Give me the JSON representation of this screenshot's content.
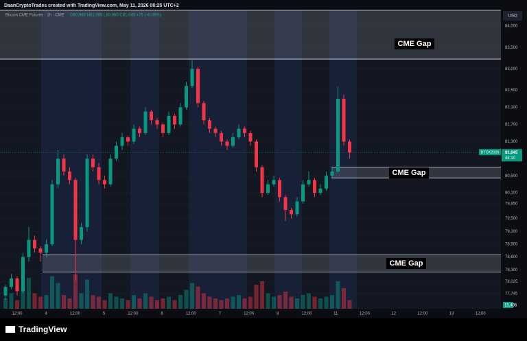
{
  "header": "DaanCryptoTrades created with TradingView.com, May 11, 2026 08:25 UTC+2",
  "chart_data": {
    "type": "candlestick",
    "title": "Bitcoin CME Futures · 1h · CME",
    "ohlc_legend": "O80,960 H81,085 L80,960 C81,045 +75 (+0.09%)",
    "currency": "USD",
    "up_color": "#089981",
    "down_color": "#f23645",
    "ylim": [
      77390,
      84370
    ],
    "yticks": [
      {
        "value": 84000,
        "label": "84,000"
      },
      {
        "value": 83500,
        "label": "83,500"
      },
      {
        "value": 83000,
        "label": "83,000"
      },
      {
        "value": 82500,
        "label": "82,500"
      },
      {
        "value": 82100,
        "label": "82,100"
      },
      {
        "value": 81700,
        "label": "81,700"
      },
      {
        "value": 81300,
        "label": "81,300"
      },
      {
        "value": 80500,
        "label": "80,500"
      },
      {
        "value": 80100,
        "label": "80,100"
      },
      {
        "value": 79850,
        "label": "79,850"
      },
      {
        "value": 79500,
        "label": "79,500"
      },
      {
        "value": 79200,
        "label": "79,200"
      },
      {
        "value": 78900,
        "label": "78,900"
      },
      {
        "value": 78600,
        "label": "78,600"
      },
      {
        "value": 78300,
        "label": "78,300"
      },
      {
        "value": 78025,
        "label": "78,025"
      },
      {
        "value": 77745,
        "label": "77,745"
      }
    ],
    "x_labels": [
      "12:00",
      "4",
      "12:00",
      "5",
      "12:00",
      "6",
      "12:00",
      "7",
      "12:00",
      "8",
      "12:00",
      "11",
      "12:00",
      "12",
      "12:00",
      "13",
      "12:00"
    ],
    "candles": [
      [
        77700,
        77950,
        77600,
        77900
      ],
      [
        77900,
        78200,
        77850,
        78100
      ],
      [
        78100,
        78150,
        77700,
        77800
      ],
      [
        77800,
        78700,
        77750,
        78600
      ],
      [
        78600,
        79300,
        78500,
        79000
      ],
      [
        79000,
        79100,
        78700,
        78800
      ],
      [
        78800,
        78850,
        78500,
        78700
      ],
      [
        78700,
        79000,
        78600,
        78900
      ],
      [
        78900,
        80400,
        78850,
        80300
      ],
      [
        80300,
        81100,
        80200,
        80900
      ],
      [
        80900,
        81000,
        80500,
        80600
      ],
      [
        80600,
        80700,
        80300,
        80400
      ],
      [
        80400,
        80450,
        78050,
        79000
      ],
      [
        79000,
        79400,
        78900,
        79300
      ],
      [
        79300,
        81000,
        79200,
        80900
      ],
      [
        80900,
        81000,
        80600,
        80700
      ],
      [
        80700,
        80800,
        80300,
        80400
      ],
      [
        80400,
        80500,
        80200,
        80300
      ],
      [
        80300,
        81000,
        80250,
        80900
      ],
      [
        80900,
        81300,
        80850,
        81200
      ],
      [
        81200,
        81500,
        81100,
        81400
      ],
      [
        81400,
        81450,
        81200,
        81300
      ],
      [
        81300,
        81700,
        81250,
        81600
      ],
      [
        81600,
        81650,
        81400,
        81500
      ],
      [
        81500,
        82100,
        81450,
        82000
      ],
      [
        82000,
        82050,
        81700,
        81800
      ],
      [
        81800,
        81850,
        81600,
        81700
      ],
      [
        81700,
        81750,
        81400,
        81500
      ],
      [
        81500,
        82000,
        81450,
        81900
      ],
      [
        81900,
        81950,
        81600,
        81700
      ],
      [
        81700,
        82200,
        81650,
        82100
      ],
      [
        82100,
        82700,
        82050,
        82600
      ],
      [
        82600,
        83200,
        82550,
        83000
      ],
      [
        83000,
        83050,
        82100,
        82200
      ],
      [
        82200,
        82250,
        81700,
        81800
      ],
      [
        81800,
        81850,
        81500,
        81600
      ],
      [
        81600,
        81650,
        81400,
        81500
      ],
      [
        81500,
        81550,
        81200,
        81300
      ],
      [
        81300,
        81350,
        81100,
        81200
      ],
      [
        81200,
        81500,
        81150,
        81400
      ],
      [
        81400,
        81700,
        81350,
        81600
      ],
      [
        81600,
        81650,
        81400,
        81500
      ],
      [
        81500,
        81550,
        81200,
        81300
      ],
      [
        81300,
        81350,
        80600,
        80700
      ],
      [
        80700,
        80750,
        80000,
        80100
      ],
      [
        80100,
        80400,
        80050,
        80300
      ],
      [
        80300,
        80500,
        80250,
        80400
      ],
      [
        80400,
        80450,
        79900,
        80000
      ],
      [
        80000,
        80050,
        79450,
        79700
      ],
      [
        79700,
        79750,
        79500,
        79600
      ],
      [
        79600,
        80000,
        79550,
        79900
      ],
      [
        79900,
        80400,
        79850,
        80300
      ],
      [
        80300,
        80600,
        80250,
        80400
      ],
      [
        80400,
        80450,
        80000,
        80100
      ],
      [
        80100,
        80300,
        80050,
        80200
      ],
      [
        80200,
        80600,
        80150,
        80500
      ],
      [
        80500,
        80700,
        80450,
        80600
      ],
      [
        80600,
        82600,
        80550,
        82300
      ],
      [
        82300,
        82400,
        81200,
        81300
      ],
      [
        81300,
        81350,
        80900,
        81045
      ]
    ],
    "volumes": [
      600,
      900,
      500,
      1200,
      1800,
      900,
      700,
      800,
      1900,
      1500,
      800,
      600,
      2000,
      900,
      1700,
      800,
      700,
      500,
      900,
      700,
      600,
      500,
      800,
      600,
      900,
      700,
      500,
      600,
      700,
      500,
      800,
      1100,
      1500,
      1300,
      900,
      700,
      600,
      500,
      600,
      700,
      800,
      600,
      700,
      1400,
      1600,
      900,
      700,
      800,
      1000,
      700,
      600,
      800,
      900,
      700,
      600,
      700,
      800,
      1600,
      1200,
      500
    ],
    "vlim": [
      0,
      2000
    ],
    "volume_label": "15,485",
    "last_price": {
      "symbol": "BTCK2026",
      "price": "81,045",
      "countdown": "44:10"
    },
    "gaps": [
      {
        "label": "CME Gap",
        "top": 84370,
        "bottom": 83230
      },
      {
        "label": "CME Gap",
        "top": 80700,
        "bottom": 80450
      },
      {
        "label": "CME Gap",
        "top": 78650,
        "bottom": 78250
      }
    ]
  },
  "footer": "TradingView"
}
